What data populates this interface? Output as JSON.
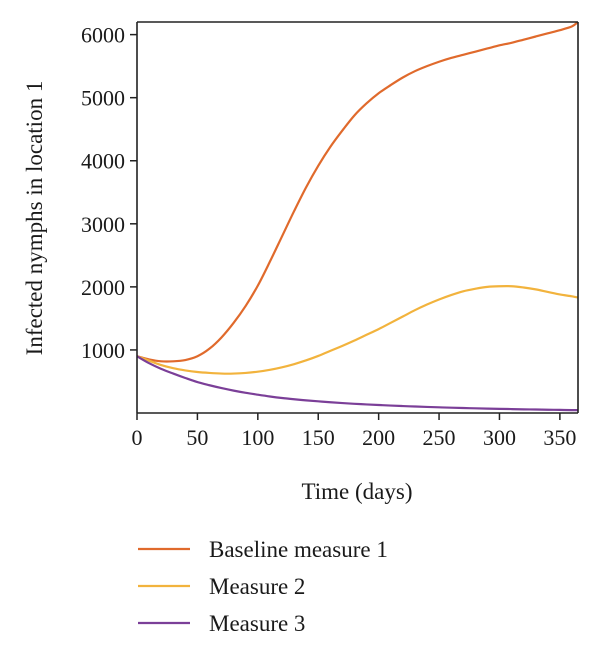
{
  "chart_data": {
    "type": "line",
    "title": "",
    "xlabel": "Time (days)",
    "ylabel": "Infected nymphs in location 1",
    "xlim": [
      0,
      365
    ],
    "ylim": [
      0,
      6200
    ],
    "xticks": [
      0,
      50,
      100,
      150,
      200,
      250,
      300,
      350
    ],
    "yticks": [
      1000,
      2000,
      3000,
      4000,
      5000,
      6000
    ],
    "grid": false,
    "legend_position": "below",
    "series": [
      {
        "name": "Baseline measure 1",
        "color": "#e06a2c",
        "x": [
          0,
          10,
          20,
          30,
          40,
          50,
          60,
          70,
          80,
          90,
          100,
          110,
          120,
          130,
          140,
          150,
          160,
          170,
          180,
          190,
          200,
          210,
          220,
          230,
          240,
          250,
          260,
          270,
          280,
          290,
          300,
          310,
          320,
          330,
          340,
          350,
          360,
          365
        ],
        "y": [
          900,
          850,
          820,
          820,
          840,
          900,
          1020,
          1200,
          1430,
          1700,
          2020,
          2400,
          2800,
          3200,
          3580,
          3920,
          4220,
          4480,
          4720,
          4910,
          5070,
          5200,
          5320,
          5420,
          5500,
          5570,
          5630,
          5680,
          5730,
          5780,
          5830,
          5870,
          5920,
          5970,
          6020,
          6070,
          6130,
          6200
        ]
      },
      {
        "name": "Measure 2",
        "color": "#f2b33d",
        "x": [
          0,
          10,
          20,
          30,
          40,
          50,
          60,
          70,
          80,
          90,
          100,
          110,
          120,
          130,
          140,
          150,
          160,
          170,
          180,
          190,
          200,
          210,
          220,
          230,
          240,
          250,
          260,
          270,
          280,
          290,
          300,
          310,
          320,
          330,
          340,
          350,
          360,
          365
        ],
        "y": [
          900,
          830,
          760,
          710,
          675,
          650,
          635,
          625,
          625,
          635,
          655,
          685,
          725,
          775,
          835,
          905,
          985,
          1065,
          1150,
          1240,
          1330,
          1430,
          1530,
          1630,
          1720,
          1800,
          1870,
          1930,
          1970,
          2000,
          2010,
          2010,
          1990,
          1960,
          1920,
          1880,
          1850,
          1830
        ]
      },
      {
        "name": "Measure 3",
        "color": "#7b3f98",
        "x": [
          0,
          10,
          20,
          30,
          40,
          50,
          60,
          70,
          80,
          90,
          100,
          110,
          120,
          130,
          140,
          150,
          160,
          170,
          180,
          190,
          200,
          210,
          220,
          230,
          240,
          250,
          260,
          270,
          280,
          290,
          300,
          310,
          320,
          330,
          340,
          350,
          360,
          365
        ],
        "y": [
          900,
          790,
          700,
          625,
          555,
          490,
          440,
          395,
          355,
          320,
          290,
          262,
          238,
          218,
          200,
          185,
          170,
          158,
          146,
          136,
          127,
          118,
          110,
          103,
          96,
          90,
          84,
          79,
          74,
          70,
          66,
          62,
          58,
          55,
          52,
          49,
          46,
          45
        ]
      }
    ]
  }
}
